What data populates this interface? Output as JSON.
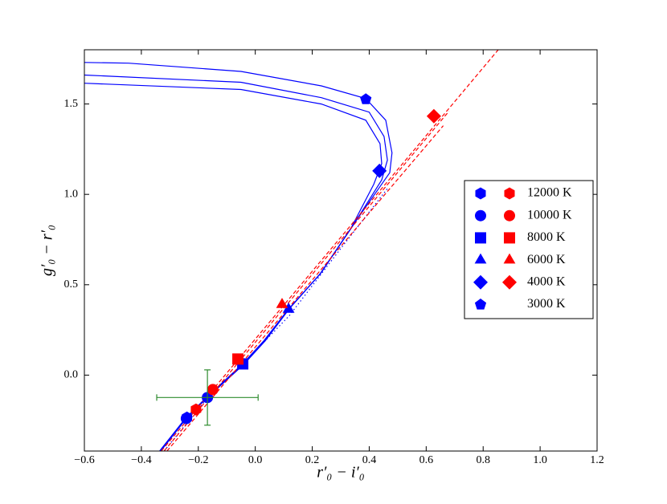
{
  "chart_data": {
    "type": "line",
    "xlabel": "r′₀ − i′₀",
    "ylabel": "g′₀ − r′₀",
    "xlim": [
      -0.6,
      1.2
    ],
    "ylim": [
      -0.42,
      1.8
    ],
    "xticks": [
      {
        "value": -0.6,
        "label": "−0.6"
      },
      {
        "value": -0.4,
        "label": "−0.4"
      },
      {
        "value": -0.2,
        "label": "−0.2"
      },
      {
        "value": 0,
        "label": "0.0"
      },
      0.2,
      0.4,
      0.6,
      0.8,
      {
        "value": 1,
        "label": "1.0"
      },
      1.2
    ],
    "yticks": [
      {
        "value": 0,
        "label": "0.0"
      },
      0.5,
      {
        "value": 1,
        "label": "1.0"
      },
      1.5
    ],
    "lines": [
      {
        "color": "#0000ff",
        "style": "solid",
        "x": [
          -0.6,
          -0.445,
          -0.05,
          0.232,
          0.388,
          0.458,
          0.48,
          0.472,
          0.345,
          0.232,
          0.12,
          0.035,
          -0.041,
          -0.168,
          -0.242,
          -0.332
        ],
        "y": [
          1.73,
          1.726,
          1.68,
          1.6,
          1.53,
          1.41,
          1.23,
          1.12,
          0.834,
          0.568,
          0.368,
          0.19,
          0.058,
          -0.124,
          -0.24,
          -0.42
        ]
      },
      {
        "color": "#0000ff",
        "style": "solid",
        "x": [
          -0.6,
          -0.05,
          0.232,
          0.4,
          0.452,
          0.464,
          0.444,
          0.34,
          0.228,
          0.117,
          0.032,
          -0.044,
          -0.17,
          -0.244,
          -0.334
        ],
        "y": [
          1.66,
          1.62,
          1.535,
          1.455,
          1.32,
          1.19,
          1.08,
          0.82,
          0.56,
          0.364,
          0.19,
          0.06,
          -0.124,
          -0.24,
          -0.42
        ]
      },
      {
        "color": "#0000ff",
        "style": "solid",
        "x": [
          -0.6,
          -0.05,
          0.232,
          0.388,
          0.438,
          0.444,
          0.416,
          0.335,
          0.225,
          0.114,
          0.03,
          -0.046,
          -0.172,
          -0.246,
          -0.336
        ],
        "y": [
          1.615,
          1.58,
          1.5,
          1.41,
          1.28,
          1.17,
          1.056,
          0.81,
          0.555,
          0.36,
          0.19,
          0.06,
          -0.124,
          -0.24,
          -0.42
        ]
      },
      {
        "color": "#0000ff",
        "style": "dotted",
        "x": [
          0.463,
          0.3,
          0.12,
          -0.05,
          -0.17,
          -0.32
        ],
        "y": [
          1.03,
          0.7,
          0.33,
          0.05,
          -0.13,
          -0.42
        ]
      },
      {
        "color": "#ff0000",
        "style": "dashed",
        "x": [
          -0.33,
          0.853
        ],
        "y": [
          -0.42,
          1.8
        ]
      },
      {
        "color": "#ff0000",
        "style": "dashed",
        "x": [
          -0.32,
          0.68
        ],
        "y": [
          -0.42,
          1.46
        ]
      },
      {
        "color": "#ff0000",
        "style": "dashed",
        "x": [
          -0.31,
          0.66
        ],
        "y": [
          -0.42,
          1.38
        ]
      }
    ],
    "markers": [
      {
        "label": "12000 K",
        "shape": "hexagon",
        "points": [
          {
            "color": "#0000ff",
            "x": -0.24,
            "y": -0.235
          },
          {
            "color": "#ff0000",
            "x": -0.208,
            "y": -0.19
          }
        ]
      },
      {
        "label": "10000 K",
        "shape": "circle",
        "points": [
          {
            "color": "#0000ff",
            "x": -0.242,
            "y": -0.24
          },
          {
            "color": "#0000ff",
            "x": -0.168,
            "y": -0.124
          },
          {
            "color": "#ff0000",
            "x": -0.149,
            "y": -0.08
          }
        ]
      },
      {
        "label": "8000 K",
        "shape": "square",
        "points": [
          {
            "color": "#0000ff",
            "x": -0.044,
            "y": 0.062
          },
          {
            "color": "#ff0000",
            "x": -0.061,
            "y": 0.089
          }
        ]
      },
      {
        "label": "6000 K",
        "shape": "triangle",
        "points": [
          {
            "color": "#0000ff",
            "x": 0.117,
            "y": 0.364
          },
          {
            "color": "#ff0000",
            "x": 0.094,
            "y": 0.39
          }
        ]
      },
      {
        "label": "4000 K",
        "shape": "diamond",
        "points": [
          {
            "color": "#0000ff",
            "x": 0.436,
            "y": 1.13
          },
          {
            "color": "#ff0000",
            "x": 0.627,
            "y": 1.433
          }
        ]
      },
      {
        "label": "3000 K",
        "shape": "pentagon",
        "points": [
          {
            "color": "#0000ff",
            "x": 0.388,
            "y": 1.526
          }
        ]
      }
    ],
    "legend_colors": [
      "#0000ff",
      "#ff0000"
    ],
    "errorbar": {
      "color": "#2e8b2e",
      "x": -0.168,
      "y": -0.124,
      "xerr": 0.178,
      "yerr": 0.153
    },
    "legend": "right"
  }
}
